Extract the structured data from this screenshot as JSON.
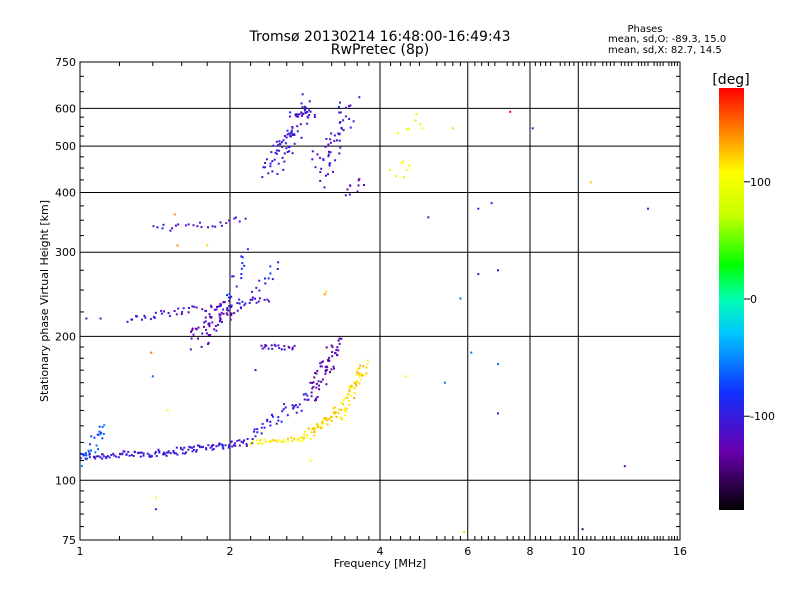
{
  "chart_data": {
    "type": "scatter",
    "title": "Tromsø 20130214 16:48:00-16:49:43",
    "subtitle": "RwPretec (8p)",
    "xlabel": "Frequency [MHz]",
    "ylabel": "Stationary phase Virtual Height [km]",
    "x_scale": "log",
    "y_scale": "log",
    "xlim": [
      1,
      16
    ],
    "ylim": [
      75,
      750
    ],
    "x_ticks": [
      1,
      2,
      4,
      6,
      8,
      10,
      16
    ],
    "y_ticks": [
      75,
      100,
      200,
      300,
      400,
      500,
      600,
      750
    ],
    "x_ticks_labels": [
      "1",
      "2",
      "4",
      "6",
      "8",
      "10",
      "16"
    ],
    "y_ticks_labels": [
      "75",
      "100",
      "200",
      "300",
      "400",
      "500",
      "600",
      "750"
    ],
    "grid": true,
    "stats": {
      "header": "Phases",
      "line1": "mean, sd,O: -89.3, 15.0",
      "line2": "mean, sd,X:  82.7, 14.5"
    },
    "colorbar": {
      "label": "[deg]",
      "range": [
        -180,
        180
      ],
      "ticks": [
        100,
        0,
        -100
      ],
      "tick_labels": [
        "100",
        "0",
        "-100"
      ]
    },
    "segments": [
      {
        "x0": 1.0,
        "x1": 1.45,
        "y0": 112,
        "y1": 114,
        "n": 60,
        "phase": -105,
        "jit": 0.015
      },
      {
        "x0": 1.45,
        "x1": 2.15,
        "y0": 114,
        "y1": 120,
        "n": 70,
        "phase": -105,
        "jit": 0.015
      },
      {
        "x0": 2.15,
        "x1": 2.9,
        "y0": 122,
        "y1": 150,
        "n": 45,
        "phase": -100,
        "jit": 0.03
      },
      {
        "x0": 2.9,
        "x1": 3.3,
        "y0": 150,
        "y1": 195,
        "n": 60,
        "phase": -130,
        "jit": 0.04
      },
      {
        "x0": 1.02,
        "x1": 1.12,
        "y0": 110,
        "y1": 130,
        "n": 25,
        "phase": -60,
        "jit": 0.03
      },
      {
        "x0": 2.2,
        "x1": 2.8,
        "y0": 120,
        "y1": 122,
        "n": 30,
        "phase": 110,
        "jit": 0.01
      },
      {
        "x0": 2.8,
        "x1": 3.3,
        "y0": 122,
        "y1": 140,
        "n": 45,
        "phase": 120,
        "jit": 0.02
      },
      {
        "x0": 3.3,
        "x1": 3.75,
        "y0": 135,
        "y1": 175,
        "n": 55,
        "phase": 120,
        "jit": 0.03
      },
      {
        "x0": 1.25,
        "x1": 2.4,
        "y0": 218,
        "y1": 240,
        "n": 55,
        "phase": -110,
        "jit": 0.015
      },
      {
        "x0": 1.7,
        "x1": 2.05,
        "y0": 195,
        "y1": 235,
        "n": 65,
        "phase": -120,
        "jit": 0.05
      },
      {
        "x0": 2.0,
        "x1": 2.15,
        "y0": 240,
        "y1": 300,
        "n": 15,
        "phase": -80,
        "jit": 0.03
      },
      {
        "x0": 2.15,
        "x1": 2.5,
        "y0": 240,
        "y1": 280,
        "n": 15,
        "phase": -90,
        "jit": 0.03
      },
      {
        "x0": 2.3,
        "x1": 2.7,
        "y0": 190,
        "y1": 190,
        "n": 20,
        "phase": -110,
        "jit": 0.01
      },
      {
        "x0": 1.4,
        "x1": 2.15,
        "y0": 335,
        "y1": 350,
        "n": 25,
        "phase": -110,
        "jit": 0.015
      },
      {
        "x0": 2.4,
        "x1": 2.9,
        "y0": 450,
        "y1": 620,
        "n": 90,
        "phase": -105,
        "jit": 0.06
      },
      {
        "x0": 3.0,
        "x1": 3.5,
        "y0": 430,
        "y1": 600,
        "n": 55,
        "phase": -110,
        "jit": 0.07
      },
      {
        "x0": 3.4,
        "x1": 3.7,
        "y0": 400,
        "y1": 420,
        "n": 10,
        "phase": -120,
        "jit": 0.02
      },
      {
        "x0": 4.3,
        "x1": 4.7,
        "y0": 420,
        "y1": 590,
        "n": 14,
        "phase": 110,
        "jit": 0.06
      }
    ],
    "points": [
      {
        "x": 6.3,
        "y": 370,
        "phase": -80
      },
      {
        "x": 5.8,
        "y": 240,
        "phase": -60
      },
      {
        "x": 6.3,
        "y": 270,
        "phase": -120
      },
      {
        "x": 6.9,
        "y": 275,
        "phase": -120
      },
      {
        "x": 6.7,
        "y": 380,
        "phase": -80
      },
      {
        "x": 5.0,
        "y": 355,
        "phase": -110
      },
      {
        "x": 7.3,
        "y": 590,
        "phase": 180
      },
      {
        "x": 8.1,
        "y": 545,
        "phase": -100
      },
      {
        "x": 5.6,
        "y": 545,
        "phase": 120
      },
      {
        "x": 10.6,
        "y": 420,
        "phase": 120
      },
      {
        "x": 13.8,
        "y": 370,
        "phase": -80
      },
      {
        "x": 6.1,
        "y": 185,
        "phase": -60
      },
      {
        "x": 6.9,
        "y": 175,
        "phase": -60
      },
      {
        "x": 5.4,
        "y": 160,
        "phase": -60
      },
      {
        "x": 6.9,
        "y": 138,
        "phase": -100
      },
      {
        "x": 4.5,
        "y": 165,
        "phase": 110
      },
      {
        "x": 12.4,
        "y": 107,
        "phase": -130
      },
      {
        "x": 10.2,
        "y": 79,
        "phase": -150
      },
      {
        "x": 5.9,
        "y": 78,
        "phase": 120
      },
      {
        "x": 1.42,
        "y": 92,
        "phase": 110
      },
      {
        "x": 1.42,
        "y": 87,
        "phase": -80
      },
      {
        "x": 1.4,
        "y": 165,
        "phase": -60
      },
      {
        "x": 1.39,
        "y": 185,
        "phase": 150
      },
      {
        "x": 1.5,
        "y": 140,
        "phase": 110
      },
      {
        "x": 1.03,
        "y": 218,
        "phase": -100
      },
      {
        "x": 1.1,
        "y": 218,
        "phase": -100
      },
      {
        "x": 2.25,
        "y": 170,
        "phase": -130
      },
      {
        "x": 2.9,
        "y": 110,
        "phase": 90
      },
      {
        "x": 3.1,
        "y": 245,
        "phase": 140
      },
      {
        "x": 3.12,
        "y": 248,
        "phase": 120
      },
      {
        "x": 1.8,
        "y": 310,
        "phase": 120
      },
      {
        "x": 1.57,
        "y": 310,
        "phase": 140
      },
      {
        "x": 1.55,
        "y": 360,
        "phase": 140
      }
    ]
  }
}
